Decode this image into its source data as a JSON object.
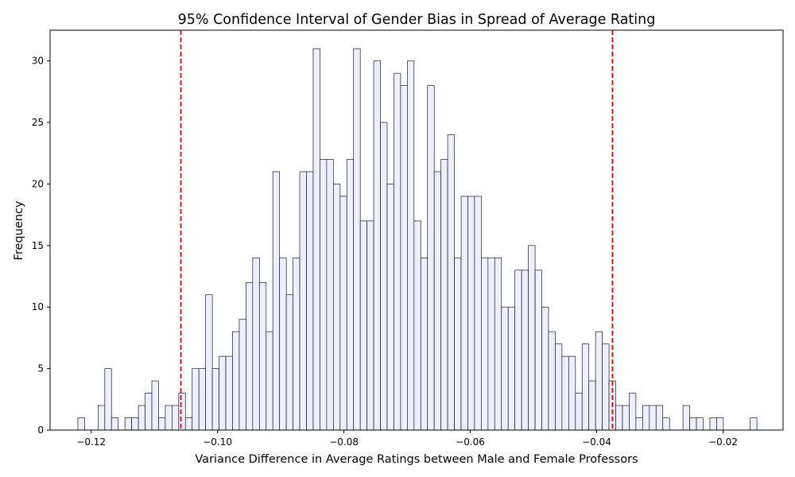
{
  "chart_data": {
    "type": "bar",
    "subtype": "histogram",
    "title": "95% Confidence Interval of Gender Bias in Spread of Average Rating",
    "xlabel": "Variance Difference in Average Ratings between Male and Female Professors",
    "ylabel": "Frequency",
    "xlim": [
      -0.1265,
      -0.0105
    ],
    "ylim": [
      0,
      32.5
    ],
    "xticks": [
      -0.12,
      -0.1,
      -0.08,
      -0.06,
      -0.04,
      -0.02
    ],
    "xtick_labels": [
      "−0.12",
      "−0.10",
      "−0.08",
      "−0.06",
      "−0.04",
      "−0.02"
    ],
    "yticks": [
      0,
      5,
      10,
      15,
      20,
      25,
      30
    ],
    "ytick_labels": [
      "0",
      "5",
      "10",
      "15",
      "20",
      "25",
      "30"
    ],
    "bin_start": -0.1221,
    "bin_width": 0.001064,
    "counts": [
      1,
      0,
      0,
      2,
      5,
      1,
      0,
      1,
      1,
      2,
      3,
      4,
      1,
      2,
      2,
      3,
      1,
      5,
      5,
      11,
      5,
      6,
      6,
      8,
      9,
      12,
      14,
      12,
      8,
      21,
      14,
      11,
      14,
      21,
      21,
      31,
      22,
      22,
      20,
      19,
      22,
      31,
      17,
      17,
      30,
      25,
      20,
      29,
      28,
      30,
      17,
      14,
      28,
      21,
      22,
      24,
      14,
      19,
      19,
      19,
      14,
      14,
      14,
      10,
      10,
      13,
      13,
      15,
      13,
      10,
      8,
      7,
      6,
      6,
      3,
      7,
      4,
      8,
      7,
      4,
      2,
      2,
      3,
      1,
      2,
      2,
      2,
      1,
      0,
      0,
      2,
      1,
      1,
      0,
      1,
      1,
      0,
      0,
      0,
      0,
      1
    ],
    "ci_lower": -0.1058,
    "ci_upper": -0.0375,
    "bar_color": "#eeeefc",
    "bar_edge_color": "#1a1a2e",
    "ci_color": "#e50000"
  }
}
